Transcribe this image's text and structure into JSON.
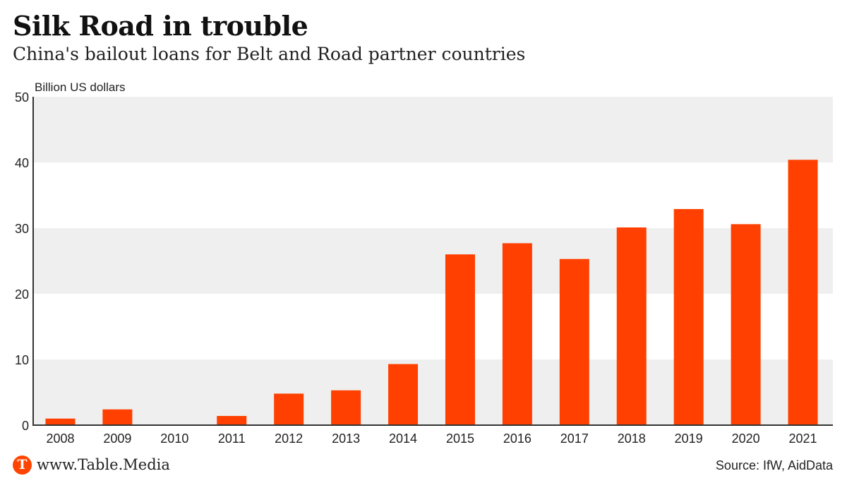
{
  "header": {
    "title": "Silk Road in trouble",
    "subtitle": "China's bailout loans for Belt and Road partner countries"
  },
  "footer": {
    "logo_letter": "T",
    "site": "www.Table.Media",
    "source": "Source: IfW, AidData"
  },
  "colors": {
    "bar": "#ff4000",
    "band": "#efefef",
    "axis": "#333333"
  },
  "chart_data": {
    "type": "bar",
    "title": "Silk Road in trouble",
    "subtitle": "China's bailout loans for Belt and Road partner countries",
    "ylabel": "Billion US dollars",
    "xlabel": "",
    "ylim": [
      0,
      50
    ],
    "yticks": [
      0,
      10,
      20,
      30,
      40,
      50
    ],
    "grid": "alternating horizontal bands",
    "categories": [
      "2008",
      "2009",
      "2010",
      "2011",
      "2012",
      "2013",
      "2014",
      "2015",
      "2016",
      "2017",
      "2018",
      "2019",
      "2020",
      "2021"
    ],
    "values": [
      1.0,
      2.4,
      0,
      1.4,
      4.8,
      5.3,
      9.3,
      26.0,
      27.7,
      25.3,
      30.1,
      32.9,
      30.6,
      40.4
    ]
  }
}
